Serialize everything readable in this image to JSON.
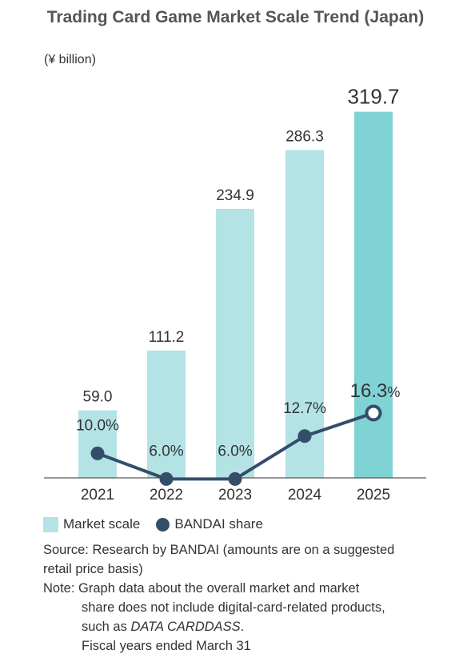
{
  "title": "Trading Card Game Market Scale Trend (Japan)",
  "unit_label": "(¥ billion)",
  "legend": {
    "bar_label": "Market scale",
    "line_label": "BANDAI share"
  },
  "colors": {
    "bar": "#b3e3e5",
    "bar_highlight": "#7fd3d5",
    "line": "#344e6a",
    "axis": "#333333"
  },
  "notes": {
    "source": "Source: Research by BANDAI (amounts are on a suggested",
    "source_cont": "retail price basis)",
    "note_prefix": "Note: ",
    "note_1": "Graph data about the overall market and market",
    "note_2": "share does not include digital-card-related products,",
    "note_3_plain": "such as ",
    "note_3_italic": "DATA CARDDASS",
    "note_3_end": ".",
    "note_4": "Fiscal years ended March 31"
  },
  "chart_data": {
    "type": "bar",
    "categories": [
      "2021",
      "2022",
      "2023",
      "2024",
      "2025"
    ],
    "series": [
      {
        "name": "Market scale",
        "type": "bar",
        "values": [
          59.0,
          111.2,
          234.9,
          286.3,
          319.7
        ],
        "labels": [
          "59.0",
          "111.2",
          "234.9",
          "286.3",
          "319.7"
        ]
      },
      {
        "name": "BANDAI share",
        "type": "line",
        "values": [
          10.0,
          6.0,
          6.0,
          12.7,
          16.3
        ],
        "labels": [
          "10.0%",
          "6.0%",
          "6.0%",
          "12.7%",
          "16.3"
        ],
        "last_label_suffix": "%"
      }
    ],
    "ylim": [
      0,
      325
    ],
    "highlight_index": 4
  }
}
